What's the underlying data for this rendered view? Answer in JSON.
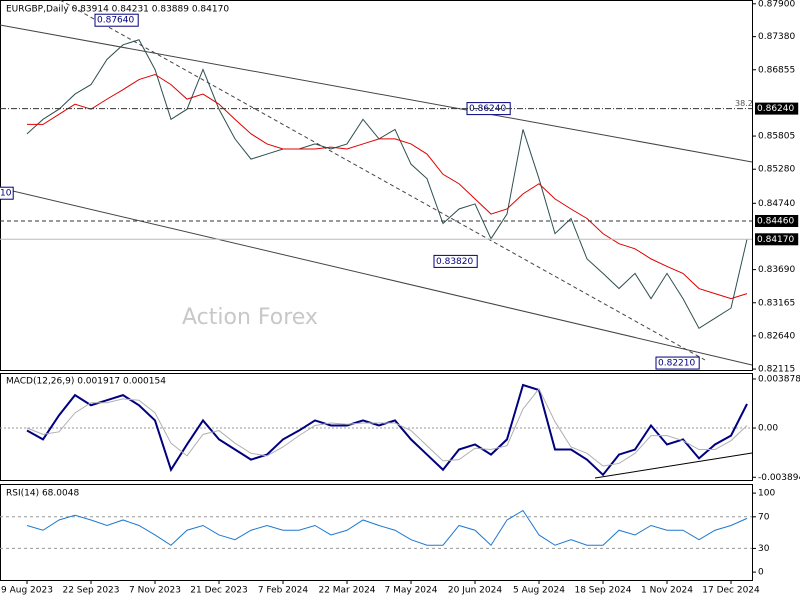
{
  "chart_data": [
    {
      "type": "line",
      "title": "EURGBP,Daily  0.83914 0.84231 0.83889 0.84170",
      "watermark": "Action Forex",
      "categories": [
        "9 Aug 2023",
        null,
        null,
        null,
        "22 Sep 2023",
        null,
        null,
        null,
        "7 Nov 2023",
        null,
        null,
        null,
        "21 Dec 2023",
        null,
        null,
        null,
        "7 Feb 2024",
        null,
        null,
        null,
        "22 Mar 2024",
        null,
        null,
        null,
        "7 May 2024",
        null,
        null,
        null,
        "20 Jun 2024",
        null,
        null,
        null,
        "5 Aug 2024",
        null,
        null,
        null,
        "18 Sep 2024",
        null,
        null,
        null,
        "1 Nov 2024",
        null,
        null,
        null,
        "17 Dec 2024",
        null
      ],
      "series": [
        {
          "color": "#2f4f4f",
          "values": [
            0.8584,
            0.8607,
            0.8623,
            0.8647,
            0.8662,
            0.8702,
            0.8725,
            0.8733,
            0.8686,
            0.8607,
            0.8623,
            0.8686,
            0.8623,
            0.8576,
            0.8544,
            0.8552,
            0.856,
            0.856,
            0.8568,
            0.856,
            0.8568,
            0.8607,
            0.8576,
            0.8591,
            0.8536,
            0.8513,
            0.8442,
            0.8465,
            0.8473,
            0.8418,
            0.8457,
            0.8591,
            0.8513,
            0.8426,
            0.845,
            0.8386,
            0.8363,
            0.8339,
            0.8363,
            0.8323,
            0.8363,
            0.8323,
            0.8276,
            0.8292,
            0.8308,
            0.8417
          ]
        },
        {
          "color": "#e00000",
          "values": [
            0.8599,
            0.8599,
            0.8615,
            0.8631,
            0.8623,
            0.8639,
            0.8654,
            0.867,
            0.8678,
            0.8662,
            0.8639,
            0.8647,
            0.8631,
            0.8607,
            0.8584,
            0.8568,
            0.856,
            0.856,
            0.856,
            0.8563,
            0.856,
            0.8568,
            0.8576,
            0.8576,
            0.8568,
            0.8552,
            0.852,
            0.8505,
            0.8481,
            0.8457,
            0.8465,
            0.8489,
            0.8505,
            0.8481,
            0.8465,
            0.845,
            0.8426,
            0.841,
            0.8402,
            0.8386,
            0.8374,
            0.8363,
            0.8339,
            0.8331,
            0.8323,
            0.8331
          ]
        }
      ],
      "ylim": [
        0.821,
        0.8796
      ],
      "yticks": [
        {
          "value": 0.879,
          "label": "0.87900"
        },
        {
          "value": 0.8738,
          "label": "0.87380"
        },
        0.86855,
        0.85805,
        {
          "value": 0.8528,
          "label": "0.85280"
        },
        {
          "value": 0.8474,
          "label": "0.84740"
        },
        {
          "value": 0.8369,
          "label": "0.83690"
        },
        0.83165,
        {
          "value": 0.8264,
          "label": "0.82640"
        },
        0.82115
      ],
      "annotations": [
        {
          "value": 0.8764,
          "label": "0.87640"
        },
        {
          "value": 0.8624,
          "label": "0.86240"
        },
        {
          "value": 0.8382,
          "label": "0.83820"
        },
        {
          "value": 0.8221,
          "label": "0.82210"
        },
        {
          "value": 0.8624,
          "label": "38.2"
        },
        {
          "value": 0.8624,
          "label": "0.86240"
        },
        {
          "value": 0.8446,
          "label": "0.84460"
        },
        {
          "value": 0.8417,
          "label": "0.84170"
        },
        {
          "value": 0.849,
          "label": "10"
        }
      ]
    },
    {
      "type": "line",
      "title": "MACD(12,26,9) 0.001917 0.000154",
      "series": [
        {
          "color": "#000080",
          "values": [
            -0.0002,
            -0.0009,
            0.001,
            0.0026,
            0.0018,
            0.0022,
            0.0026,
            0.0018,
            0.0006,
            -0.0033,
            -0.0013,
            0.0006,
            -0.0009,
            -0.0017,
            -0.0025,
            -0.0021,
            -0.0009,
            -0.0002,
            0.0006,
            0.0002,
            0.0002,
            0.0006,
            0.0002,
            0.0006,
            -0.0009,
            -0.0021,
            -0.0033,
            -0.0017,
            -0.0013,
            -0.0021,
            -0.0009,
            0.0034,
            0.003,
            -0.0017,
            -0.0017,
            -0.0025,
            -0.0037,
            -0.0021,
            -0.0017,
            0.0002,
            -0.0013,
            -0.0009,
            -0.0024,
            -0.0013,
            -0.0006,
            0.0019
          ]
        },
        {
          "color": "#b0b0b0",
          "values": [
            0.0,
            -0.0005,
            -0.0003,
            0.0012,
            0.002,
            0.002,
            0.0023,
            0.0022,
            0.0012,
            -0.0012,
            -0.0022,
            -0.0005,
            -0.0002,
            -0.0012,
            -0.002,
            -0.0022,
            -0.0015,
            -0.0006,
            0.0002,
            0.0004,
            0.0003,
            0.0004,
            0.0004,
            0.0004,
            -0.0002,
            -0.0014,
            -0.0026,
            -0.0025,
            -0.0016,
            -0.0017,
            -0.0014,
            0.0015,
            0.0031,
            0.0005,
            -0.0015,
            -0.002,
            -0.003,
            -0.0028,
            -0.002,
            -0.0006,
            -0.0006,
            -0.001,
            -0.0017,
            -0.0017,
            -0.001,
            0.0002
          ]
        }
      ],
      "ylim": [
        -0.00411,
        0.00435
      ],
      "yticks": [
        0.003878,
        {
          "value": 0,
          "label": "0.00"
        },
        -0.003894
      ]
    },
    {
      "type": "line",
      "title": "RSI(14) 68.0048",
      "series": [
        {
          "color": "#1e78d0",
          "values": [
            59,
            53,
            66,
            72,
            66,
            59,
            66,
            59,
            47,
            34,
            53,
            59,
            47,
            41,
            53,
            59,
            53,
            53,
            59,
            47,
            53,
            66,
            59,
            53,
            41,
            34,
            34,
            59,
            53,
            34,
            66,
            78,
            47,
            34,
            41,
            34,
            34,
            53,
            47,
            59,
            53,
            53,
            41,
            53,
            59,
            68
          ]
        }
      ],
      "ylim": [
        -10,
        109
      ],
      "yticks": [
        100,
        70,
        30,
        0
      ]
    }
  ]
}
